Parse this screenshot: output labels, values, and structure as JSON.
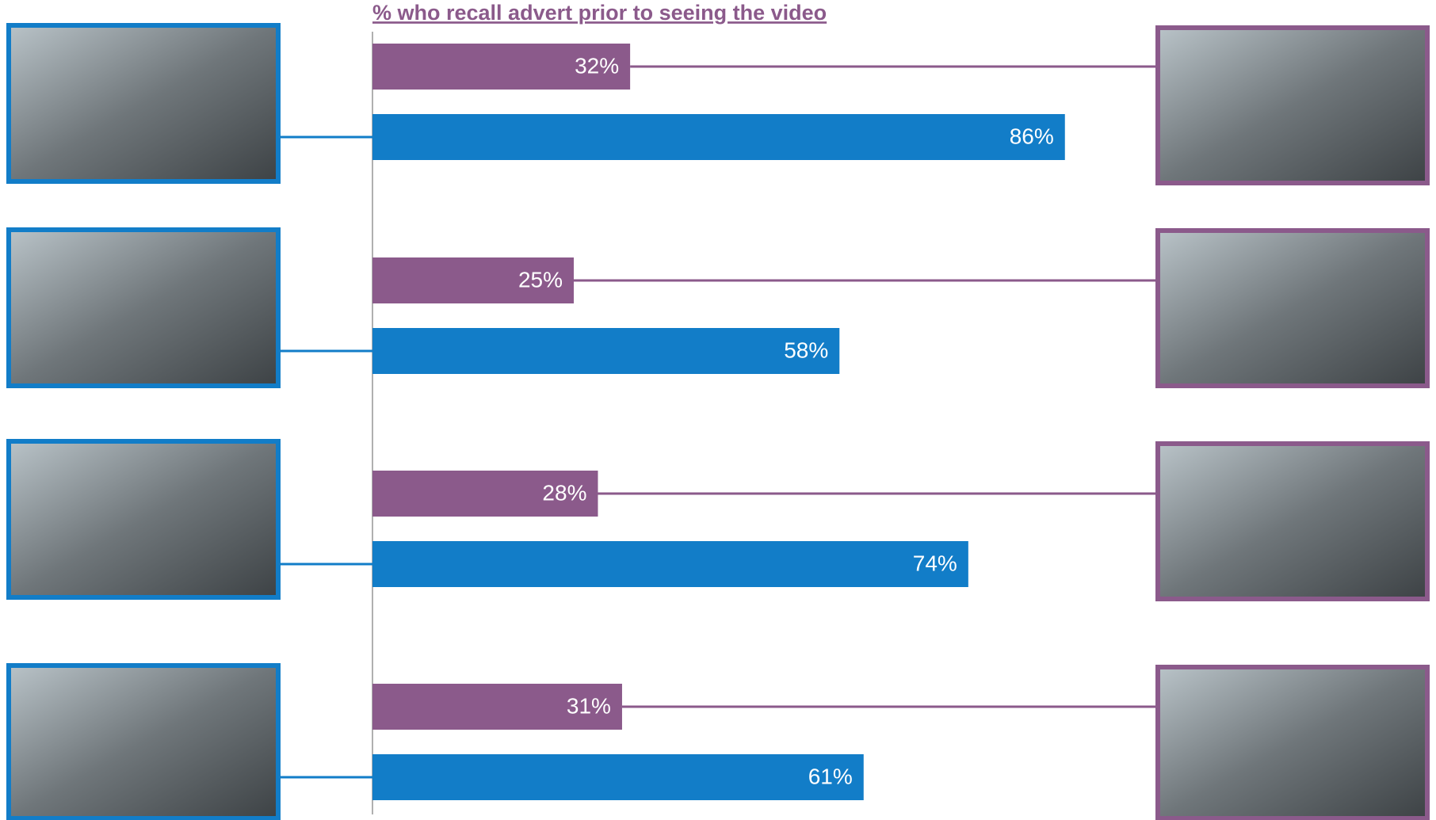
{
  "chart_data": {
    "type": "bar",
    "orientation": "horizontal",
    "title": "% who recall advert prior to seeing the video",
    "title_color": "#8b5a8b",
    "categories": [
      null,
      null,
      null,
      null
    ],
    "series": [
      {
        "color": "#8b5a8b",
        "values": [
          32,
          25,
          28,
          31
        ],
        "value_labels": [
          "32%",
          "25%",
          "28%",
          "31%"
        ]
      },
      {
        "color": "#127dc8",
        "values": [
          86,
          58,
          74,
          61
        ],
        "value_labels": [
          "86%",
          "58%",
          "74%",
          "61%"
        ]
      }
    ],
    "xlim": [
      0,
      100
    ]
  }
}
